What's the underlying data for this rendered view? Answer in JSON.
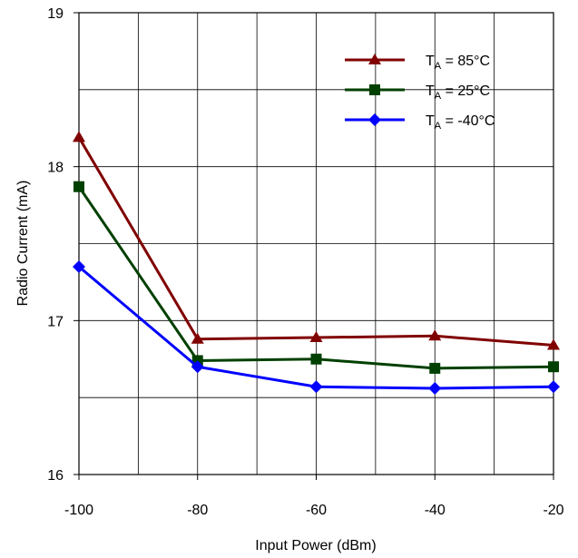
{
  "chart_data": {
    "type": "line",
    "xlabel": "Input Power (dBm)",
    "ylabel": "Radio Current (mA)",
    "xlim": [
      -100,
      -20
    ],
    "ylim": [
      16,
      19
    ],
    "x_ticks": [
      -100,
      -80,
      -60,
      -40,
      -20
    ],
    "y_ticks": [
      16,
      17,
      18,
      19
    ],
    "x_minor_grid_step": 10,
    "y_minor_grid_step": 0.5,
    "grid": true,
    "legend_position": "top-right",
    "x": [
      -100,
      -80,
      -60,
      -40,
      -20
    ],
    "series": [
      {
        "name_prefix": "T",
        "name_sub": "A",
        "name_suffix": " = 85°C",
        "color": "#800000",
        "marker": "triangle",
        "values": [
          18.19,
          16.88,
          16.89,
          16.9,
          16.84
        ]
      },
      {
        "name_prefix": "T",
        "name_sub": "A",
        "name_suffix": " = 25°C",
        "color": "#004000",
        "marker": "square",
        "values": [
          17.87,
          16.74,
          16.75,
          16.69,
          16.7
        ]
      },
      {
        "name_prefix": "T",
        "name_sub": "A",
        "name_suffix": " = -40°C",
        "color": "#0000ff",
        "marker": "diamond",
        "values": [
          17.35,
          16.7,
          16.57,
          16.56,
          16.57
        ]
      }
    ]
  }
}
